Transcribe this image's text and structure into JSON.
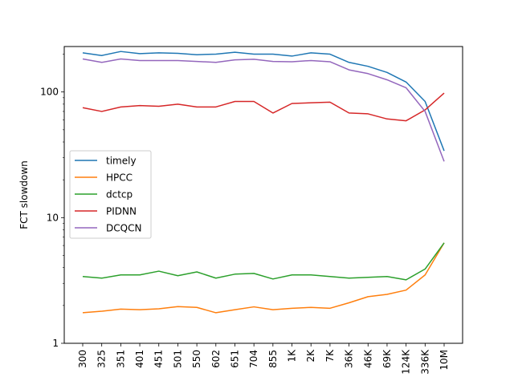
{
  "chart_data": {
    "type": "line",
    "title": "",
    "xlabel": "",
    "ylabel": "FCT slowdown",
    "y_scale": "log",
    "ylim": [
      1,
      230
    ],
    "y_ticks": [
      {
        "value": 1,
        "label": "1"
      },
      {
        "value": 10,
        "label": "10"
      },
      {
        "value": 100,
        "label": "100"
      }
    ],
    "x_tick_rotation": 90,
    "grid": false,
    "legend_position": "center-left",
    "categories": [
      "300",
      "325",
      "351",
      "401",
      "451",
      "501",
      "550",
      "602",
      "651",
      "704",
      "855",
      "1K",
      "2K",
      "7K",
      "36K",
      "46K",
      "69K",
      "124K",
      "336K",
      "10M"
    ],
    "series": [
      {
        "name": "timely",
        "color": "#1f77b4",
        "values": [
          205,
          195,
          210,
          202,
          205,
          203,
          198,
          200,
          207,
          200,
          200,
          193,
          205,
          200,
          172,
          160,
          143,
          120,
          84,
          34
        ]
      },
      {
        "name": "HPCC",
        "color": "#ff7f0e",
        "values": [
          1.75,
          1.8,
          1.87,
          1.85,
          1.88,
          1.96,
          1.93,
          1.75,
          1.85,
          1.95,
          1.85,
          1.9,
          1.93,
          1.9,
          2.1,
          2.35,
          2.45,
          2.65,
          3.5,
          6.3
        ]
      },
      {
        "name": "dctcp",
        "color": "#2ca02c",
        "values": [
          3.4,
          3.3,
          3.5,
          3.5,
          3.75,
          3.45,
          3.7,
          3.3,
          3.55,
          3.6,
          3.25,
          3.5,
          3.5,
          3.4,
          3.3,
          3.35,
          3.4,
          3.2,
          3.9,
          6.3
        ]
      },
      {
        "name": "PIDNN",
        "color": "#d62728",
        "values": [
          75,
          70,
          76,
          78,
          77,
          80,
          76,
          76,
          84,
          84,
          68,
          81,
          82,
          83,
          68,
          67,
          61,
          59,
          72,
          98
        ]
      },
      {
        "name": "DCQCN",
        "color": "#9467bd",
        "values": [
          183,
          172,
          183,
          178,
          178,
          178,
          175,
          172,
          180,
          182,
          175,
          174,
          178,
          174,
          150,
          140,
          125,
          108,
          70,
          28
        ]
      }
    ]
  }
}
